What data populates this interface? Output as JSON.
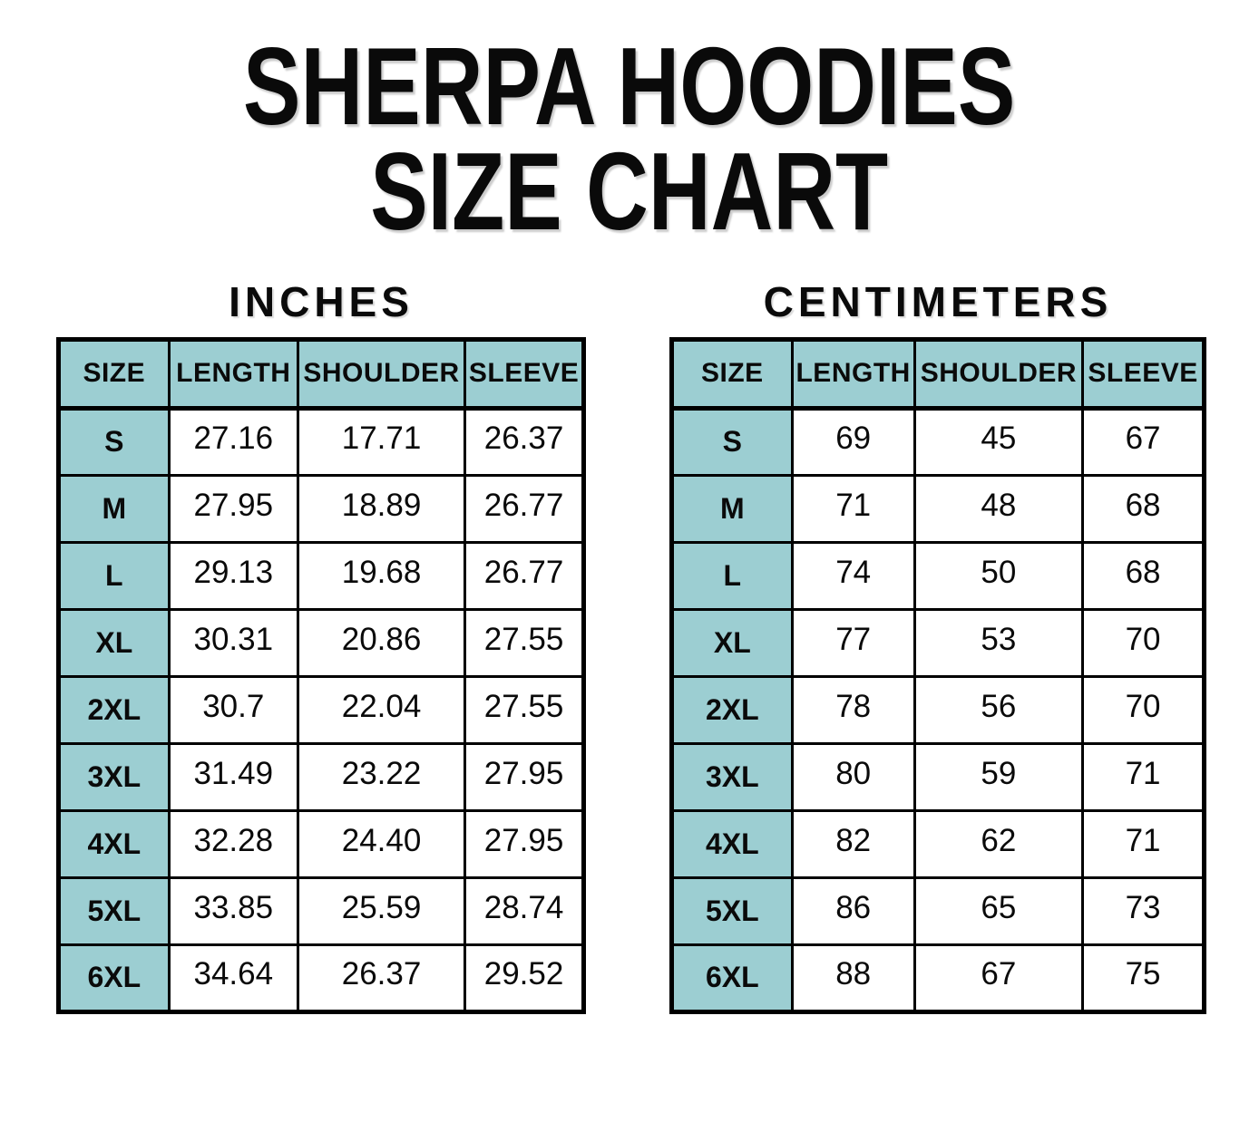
{
  "title": {
    "line1": "SHERPA HOODIES",
    "line2": "SIZE CHART"
  },
  "colors": {
    "header_fill": "#9cced2",
    "border": "#000000",
    "text": "#0a0a0a",
    "background": "#ffffff"
  },
  "tables": [
    {
      "unit_label": "INCHES",
      "columns": [
        "SIZE",
        "LENGTH",
        "SHOULDER",
        "SLEEVE"
      ],
      "rows": [
        {
          "size": "S",
          "length": "27.16",
          "shoulder": "17.71",
          "sleeve": "26.37"
        },
        {
          "size": "M",
          "length": "27.95",
          "shoulder": "18.89",
          "sleeve": "26.77"
        },
        {
          "size": "L",
          "length": "29.13",
          "shoulder": "19.68",
          "sleeve": "26.77"
        },
        {
          "size": "XL",
          "length": "30.31",
          "shoulder": "20.86",
          "sleeve": "27.55"
        },
        {
          "size": "2XL",
          "length": "30.7",
          "shoulder": "22.04",
          "sleeve": "27.55"
        },
        {
          "size": "3XL",
          "length": "31.49",
          "shoulder": "23.22",
          "sleeve": "27.95"
        },
        {
          "size": "4XL",
          "length": "32.28",
          "shoulder": "24.40",
          "sleeve": "27.95"
        },
        {
          "size": "5XL",
          "length": "33.85",
          "shoulder": "25.59",
          "sleeve": "28.74"
        },
        {
          "size": "6XL",
          "length": "34.64",
          "shoulder": "26.37",
          "sleeve": "29.52"
        }
      ]
    },
    {
      "unit_label": "CENTIMETERS",
      "columns": [
        "SIZE",
        "LENGTH",
        "SHOULDER",
        "SLEEVE"
      ],
      "rows": [
        {
          "size": "S",
          "length": "69",
          "shoulder": "45",
          "sleeve": "67"
        },
        {
          "size": "M",
          "length": "71",
          "shoulder": "48",
          "sleeve": "68"
        },
        {
          "size": "L",
          "length": "74",
          "shoulder": "50",
          "sleeve": "68"
        },
        {
          "size": "XL",
          "length": "77",
          "shoulder": "53",
          "sleeve": "70"
        },
        {
          "size": "2XL",
          "length": "78",
          "shoulder": "56",
          "sleeve": "70"
        },
        {
          "size": "3XL",
          "length": "80",
          "shoulder": "59",
          "sleeve": "71"
        },
        {
          "size": "4XL",
          "length": "82",
          "shoulder": "62",
          "sleeve": "71"
        },
        {
          "size": "5XL",
          "length": "86",
          "shoulder": "65",
          "sleeve": "73"
        },
        {
          "size": "6XL",
          "length": "88",
          "shoulder": "67",
          "sleeve": "75"
        }
      ]
    }
  ]
}
